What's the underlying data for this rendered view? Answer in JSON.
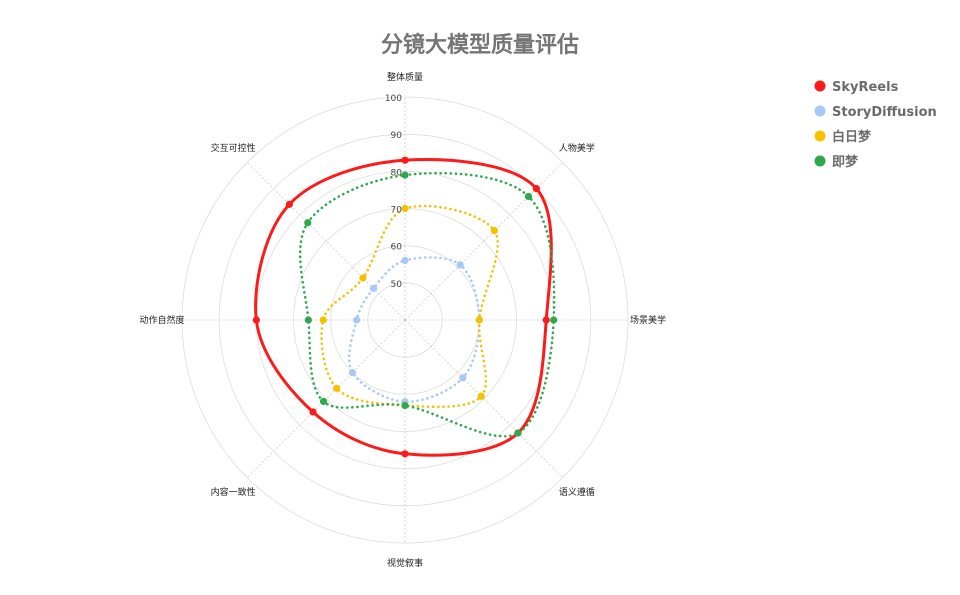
{
  "chart_data": {
    "type": "radar",
    "title": "分镜大模型质量评估",
    "axes": [
      "整体质量",
      "人物美学",
      "场景美学",
      "语义遵循",
      "视觉叙事",
      "内容一致性",
      "动作自然度",
      "交互可控性"
    ],
    "r_range": [
      40,
      100
    ],
    "ticks": [
      50,
      60,
      70,
      80,
      90,
      100
    ],
    "grid": true,
    "legend_position": "top-right",
    "series": [
      {
        "name": "SkyReels",
        "color": "#ff1a1a",
        "style": "solid",
        "values": [
          83,
          90,
          78,
          83,
          76,
          75,
          80,
          84
        ]
      },
      {
        "name": "StoryDiffusion",
        "color": "#a8c8f8",
        "style": "dotted",
        "values": [
          56,
          61,
          60,
          62,
          62,
          60,
          53,
          52
        ]
      },
      {
        "name": "白日梦",
        "color": "#f5c000",
        "style": "dotted",
        "values": [
          70,
          74,
          60,
          69,
          63,
          66,
          62,
          56
        ]
      },
      {
        "name": "即梦",
        "color": "#2ea84a",
        "style": "dotted",
        "values": [
          79,
          87,
          80,
          83,
          63,
          71,
          66,
          77
        ]
      }
    ]
  }
}
